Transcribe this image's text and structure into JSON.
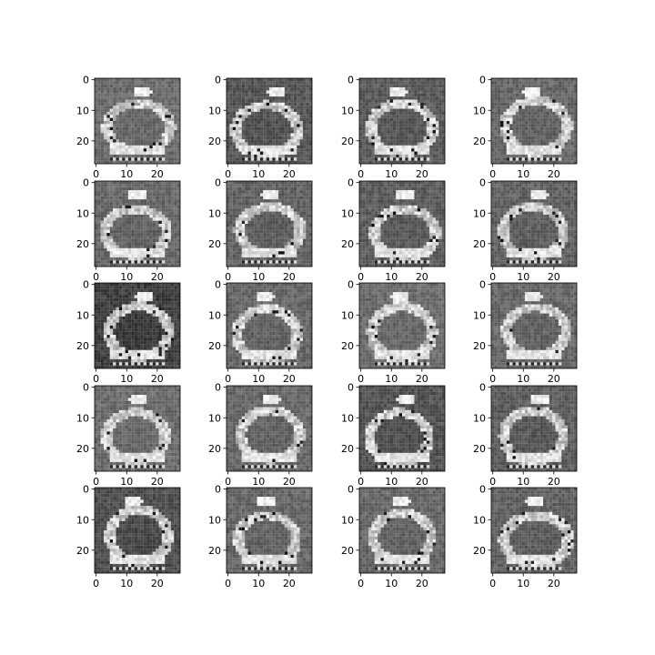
{
  "chart_data": {
    "type": "heatmap",
    "grid": {
      "rows": 5,
      "cols": 4
    },
    "image_size": 28,
    "colormap": "gray",
    "axes": {
      "x_ticks": [
        "0",
        "10",
        "20"
      ],
      "y_ticks": [
        "0",
        "10",
        "20"
      ],
      "x_tick_values": [
        0,
        10,
        20
      ],
      "y_tick_values": [
        0,
        10,
        20
      ],
      "xlim": [
        -0.5,
        27.5
      ],
      "ylim": [
        27.5,
        -0.5
      ]
    },
    "panels": [
      {
        "row": 0,
        "col": 0,
        "background": 0.42
      },
      {
        "row": 0,
        "col": 1,
        "background": 0.33
      },
      {
        "row": 0,
        "col": 2,
        "background": 0.35
      },
      {
        "row": 0,
        "col": 3,
        "background": 0.4
      },
      {
        "row": 1,
        "col": 0,
        "background": 0.4
      },
      {
        "row": 1,
        "col": 1,
        "background": 0.38
      },
      {
        "row": 1,
        "col": 2,
        "background": 0.36
      },
      {
        "row": 1,
        "col": 3,
        "background": 0.38
      },
      {
        "row": 2,
        "col": 0,
        "background": 0.24
      },
      {
        "row": 2,
        "col": 1,
        "background": 0.4
      },
      {
        "row": 2,
        "col": 2,
        "background": 0.42
      },
      {
        "row": 2,
        "col": 3,
        "background": 0.4
      },
      {
        "row": 3,
        "col": 0,
        "background": 0.42
      },
      {
        "row": 3,
        "col": 1,
        "background": 0.4
      },
      {
        "row": 3,
        "col": 2,
        "background": 0.32
      },
      {
        "row": 3,
        "col": 3,
        "background": 0.36
      },
      {
        "row": 4,
        "col": 0,
        "background": 0.3
      },
      {
        "row": 4,
        "col": 1,
        "background": 0.4
      },
      {
        "row": 4,
        "col": 2,
        "background": 0.4
      },
      {
        "row": 4,
        "col": 3,
        "background": 0.38
      }
    ]
  }
}
